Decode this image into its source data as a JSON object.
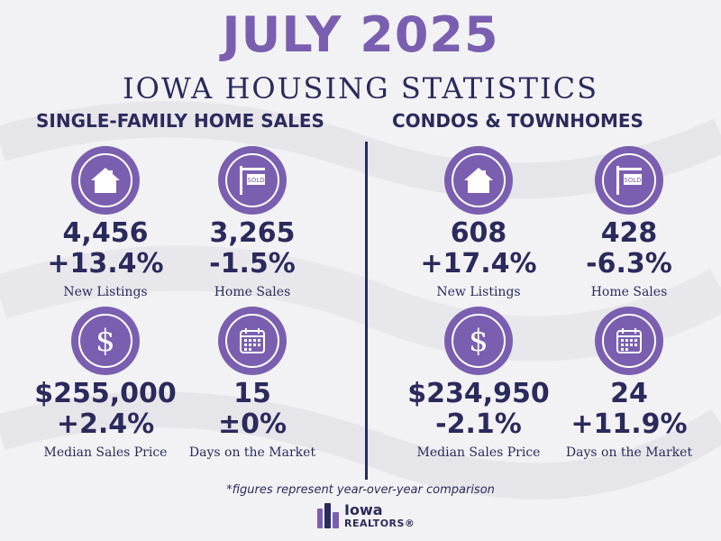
{
  "colors": {
    "purple": "#7a5fb0",
    "navy": "#2b2a5c",
    "background": "#f2f2f4"
  },
  "header": {
    "title": "JULY 2025",
    "subtitle": "IOWA HOUSING STATISTICS"
  },
  "single_family": {
    "heading": "SINGLE-FAMILY HOME SALES",
    "new_listings": {
      "icon": "house-icon",
      "value": "4,456",
      "change": "+13.4%",
      "label": "New Listings"
    },
    "home_sales": {
      "icon": "sold-sign-icon",
      "value": "3,265",
      "change": "-1.5%",
      "label": "Home Sales"
    },
    "median_price": {
      "icon": "dollar-icon",
      "value": "$255,000",
      "change": "+2.4%",
      "label": "Median Sales Price"
    },
    "days_on_market": {
      "icon": "calendar-icon",
      "value": "15",
      "change": "±0%",
      "label": "Days on the Market"
    }
  },
  "condos": {
    "heading": "CONDOS & TOWNHOMES",
    "new_listings": {
      "icon": "house-icon",
      "value": "608",
      "change": "+17.4%",
      "label": "New Listings"
    },
    "home_sales": {
      "icon": "sold-sign-icon",
      "value": "428",
      "change": "-6.3%",
      "label": "Home Sales"
    },
    "median_price": {
      "icon": "dollar-icon",
      "value": "$234,950",
      "change": "-2.1%",
      "label": "Median Sales Price"
    },
    "days_on_market": {
      "icon": "calendar-icon",
      "value": "24",
      "change": "+11.9%",
      "label": "Days on the Market"
    }
  },
  "footnote": "*figures represent year-over-year comparison",
  "logo": {
    "line1": "Iowa",
    "line2": "REALTORS®"
  }
}
